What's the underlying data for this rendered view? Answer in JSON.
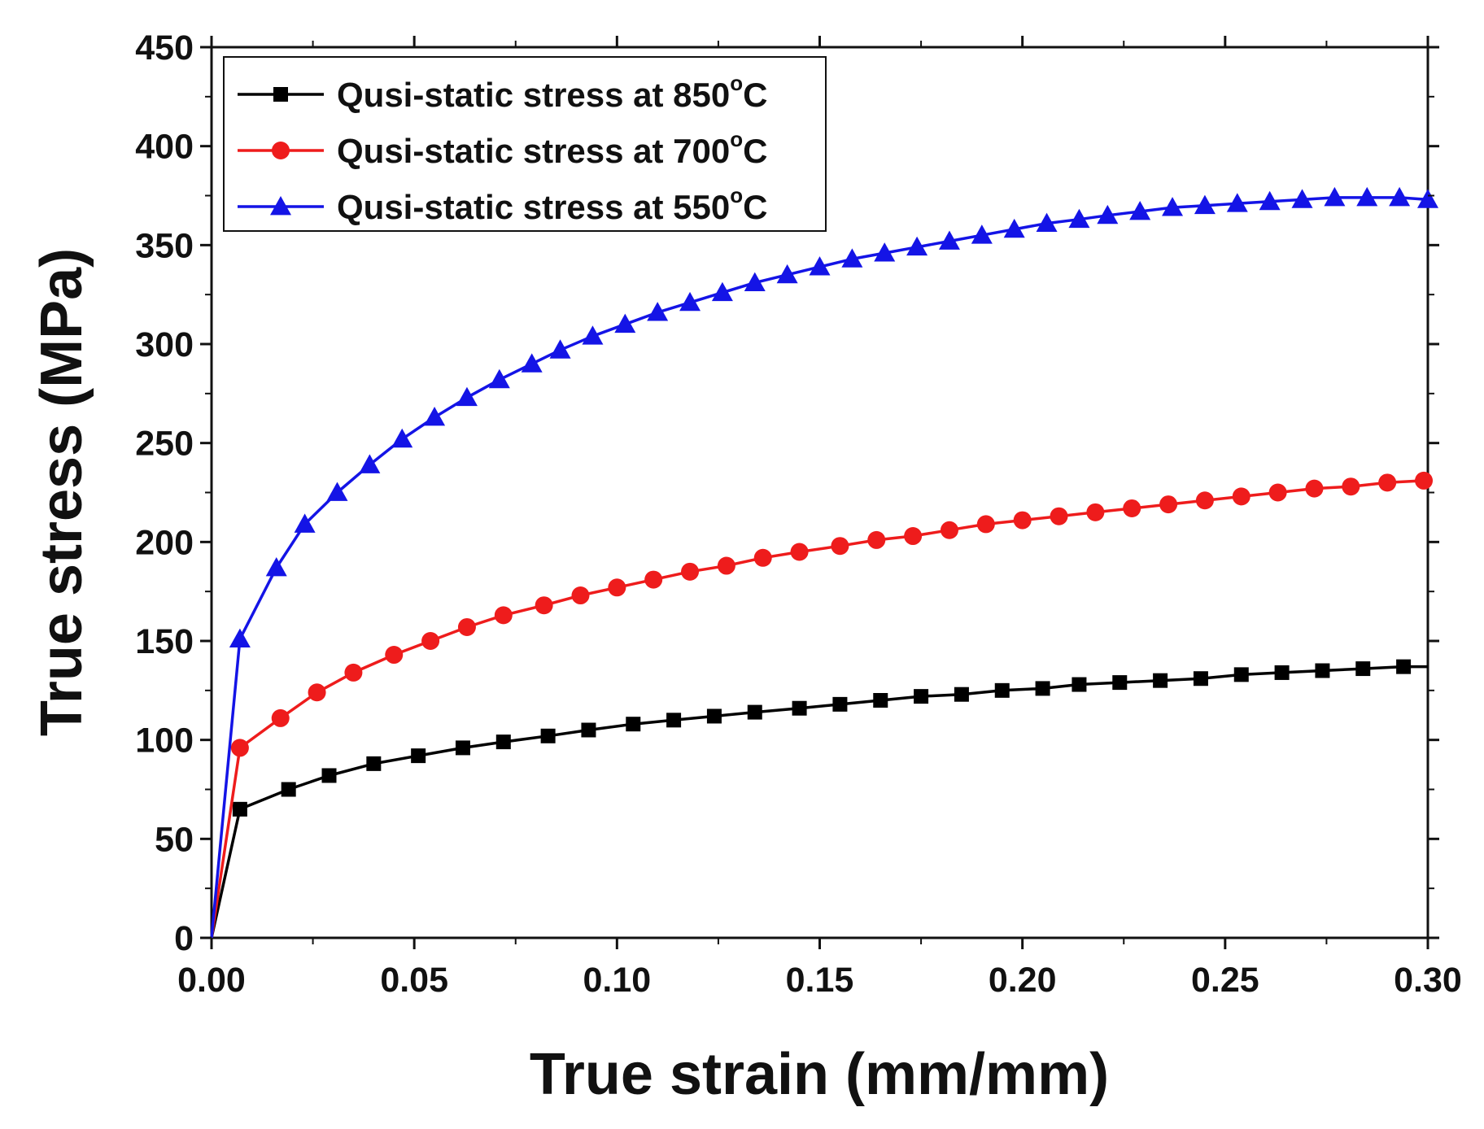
{
  "chart_data": {
    "type": "line",
    "title": "",
    "xlabel": "True strain (mm/mm)",
    "ylabel": "True stress (MPa)",
    "xlim": [
      0,
      0.3
    ],
    "ylim": [
      0,
      450
    ],
    "x_ticks": [
      0.0,
      0.05,
      0.1,
      0.15,
      0.2,
      0.25,
      0.3
    ],
    "x_tick_labels": [
      "0.00",
      "0.05",
      "0.10",
      "0.15",
      "0.20",
      "0.25",
      "0.30"
    ],
    "y_ticks": [
      0,
      50,
      100,
      150,
      200,
      250,
      300,
      350,
      400,
      450
    ],
    "y_tick_labels": [
      "0",
      "50",
      "100",
      "150",
      "200",
      "250",
      "300",
      "350",
      "400",
      "450"
    ],
    "grid": false,
    "legend_position": "top-left",
    "series": [
      {
        "name_prefix": "Qusi-static stress at 850",
        "name_unit": "C",
        "name_degree": "o",
        "color": "#000000",
        "marker": "square",
        "x": [
          0.0,
          0.007,
          0.019,
          0.029,
          0.04,
          0.051,
          0.062,
          0.072,
          0.083,
          0.093,
          0.104,
          0.114,
          0.124,
          0.134,
          0.145,
          0.155,
          0.165,
          0.175,
          0.185,
          0.195,
          0.205,
          0.214,
          0.224,
          0.234,
          0.244,
          0.254,
          0.264,
          0.274,
          0.284,
          0.294,
          0.3
        ],
        "y": [
          0,
          65,
          75,
          82,
          88,
          92,
          96,
          99,
          102,
          105,
          108,
          110,
          112,
          114,
          116,
          118,
          120,
          122,
          123,
          125,
          126,
          128,
          129,
          130,
          131,
          133,
          134,
          135,
          136,
          137,
          137
        ],
        "marker_count": 29
      },
      {
        "name_prefix": "Qusi-static stress at 700",
        "name_unit": "C",
        "name_degree": "o",
        "color": "#ee1c1c",
        "marker": "circle",
        "x": [
          0.0,
          0.007,
          0.017,
          0.026,
          0.035,
          0.045,
          0.054,
          0.063,
          0.072,
          0.082,
          0.091,
          0.1,
          0.109,
          0.118,
          0.127,
          0.136,
          0.145,
          0.155,
          0.164,
          0.173,
          0.182,
          0.191,
          0.2,
          0.209,
          0.218,
          0.227,
          0.236,
          0.245,
          0.254,
          0.263,
          0.272,
          0.281,
          0.29,
          0.299
        ],
        "y": [
          0,
          96,
          111,
          124,
          134,
          143,
          150,
          157,
          163,
          168,
          173,
          177,
          181,
          185,
          188,
          192,
          195,
          198,
          201,
          203,
          206,
          209,
          211,
          213,
          215,
          217,
          219,
          221,
          223,
          225,
          227,
          228,
          230,
          231
        ],
        "marker_count": 33
      },
      {
        "name_prefix": "Qusi-static stress at 550",
        "name_unit": "C",
        "name_degree": "o",
        "color": "#1414e6",
        "marker": "triangle",
        "x": [
          0.0,
          0.007,
          0.016,
          0.023,
          0.031,
          0.039,
          0.047,
          0.055,
          0.063,
          0.071,
          0.079,
          0.086,
          0.094,
          0.102,
          0.11,
          0.118,
          0.126,
          0.134,
          0.142,
          0.15,
          0.158,
          0.166,
          0.174,
          0.182,
          0.19,
          0.198,
          0.206,
          0.214,
          0.221,
          0.229,
          0.237,
          0.245,
          0.253,
          0.261,
          0.269,
          0.277,
          0.285,
          0.293,
          0.3
        ],
        "y": [
          0,
          151,
          187,
          209,
          225,
          239,
          252,
          263,
          273,
          282,
          290,
          297,
          304,
          310,
          316,
          321,
          326,
          331,
          335,
          339,
          343,
          346,
          349,
          352,
          355,
          358,
          361,
          363,
          365,
          367,
          369,
          370,
          371,
          372,
          373,
          374,
          374,
          374,
          373
        ],
        "marker_count": 38
      }
    ]
  }
}
